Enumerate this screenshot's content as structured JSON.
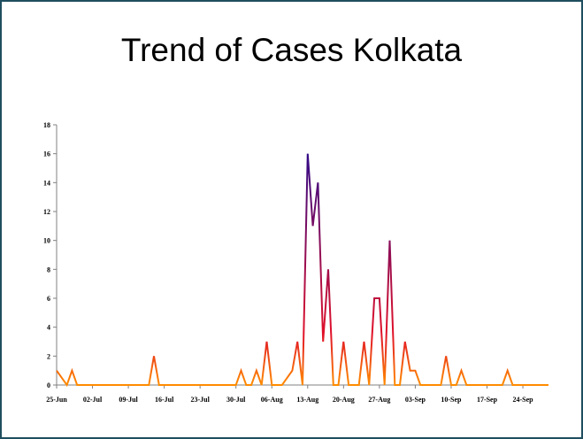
{
  "chart_data": {
    "type": "line",
    "title": "Trend of Cases Kolkata",
    "xlabel": "",
    "ylabel": "",
    "ylim": [
      0,
      18
    ],
    "yticks": [
      0,
      2,
      4,
      6,
      8,
      10,
      12,
      14,
      16,
      18
    ],
    "x_start": "25-Jun",
    "x_end": "29-Sep",
    "xtick_labels": [
      "25-Jun",
      "02-Jul",
      "09-Jul",
      "16-Jul",
      "23-Jul",
      "30-Jul",
      "06-Aug",
      "13-Aug",
      "20-Aug",
      "27-Aug",
      "03-Sep",
      "10-Sep",
      "17-Sep",
      "24-Sep"
    ],
    "grid": false,
    "legend": "none",
    "color_scale": {
      "low": "#ff8c00",
      "mid": "#e0102a",
      "high": "#2a0a8c"
    },
    "series": [
      {
        "name": "",
        "points": [
          {
            "x": "25-Jun",
            "y": 1
          },
          {
            "x": "27-Jun",
            "y": 0
          },
          {
            "x": "28-Jun",
            "y": 1
          },
          {
            "x": "29-Jun",
            "y": 0
          },
          {
            "x": "13-Jul",
            "y": 0
          },
          {
            "x": "14-Jul",
            "y": 2
          },
          {
            "x": "15-Jul",
            "y": 0
          },
          {
            "x": "29-Jul",
            "y": 0
          },
          {
            "x": "30-Jul",
            "y": 0
          },
          {
            "x": "31-Jul",
            "y": 1
          },
          {
            "x": "01-Aug",
            "y": 0
          },
          {
            "x": "02-Aug",
            "y": 0
          },
          {
            "x": "03-Aug",
            "y": 1
          },
          {
            "x": "04-Aug",
            "y": 0
          },
          {
            "x": "05-Aug",
            "y": 3
          },
          {
            "x": "06-Aug",
            "y": 0
          },
          {
            "x": "08-Aug",
            "y": 0
          },
          {
            "x": "10-Aug",
            "y": 1
          },
          {
            "x": "11-Aug",
            "y": 3
          },
          {
            "x": "12-Aug",
            "y": 0
          },
          {
            "x": "13-Aug",
            "y": 16
          },
          {
            "x": "14-Aug",
            "y": 11
          },
          {
            "x": "15-Aug",
            "y": 14
          },
          {
            "x": "16-Aug",
            "y": 3
          },
          {
            "x": "17-Aug",
            "y": 8
          },
          {
            "x": "18-Aug",
            "y": 0
          },
          {
            "x": "19-Aug",
            "y": 0
          },
          {
            "x": "20-Aug",
            "y": 3
          },
          {
            "x": "21-Aug",
            "y": 0
          },
          {
            "x": "23-Aug",
            "y": 0
          },
          {
            "x": "24-Aug",
            "y": 3
          },
          {
            "x": "25-Aug",
            "y": 0
          },
          {
            "x": "26-Aug",
            "y": 6
          },
          {
            "x": "27-Aug",
            "y": 6
          },
          {
            "x": "28-Aug",
            "y": 0
          },
          {
            "x": "29-Aug",
            "y": 10
          },
          {
            "x": "30-Aug",
            "y": 0
          },
          {
            "x": "31-Aug",
            "y": 0
          },
          {
            "x": "01-Sep",
            "y": 3
          },
          {
            "x": "02-Sep",
            "y": 1
          },
          {
            "x": "03-Sep",
            "y": 1
          },
          {
            "x": "04-Sep",
            "y": 0
          },
          {
            "x": "08-Sep",
            "y": 0
          },
          {
            "x": "09-Sep",
            "y": 2
          },
          {
            "x": "10-Sep",
            "y": 0
          },
          {
            "x": "11-Sep",
            "y": 0
          },
          {
            "x": "12-Sep",
            "y": 1
          },
          {
            "x": "13-Sep",
            "y": 0
          },
          {
            "x": "20-Sep",
            "y": 0
          },
          {
            "x": "21-Sep",
            "y": 1
          },
          {
            "x": "22-Sep",
            "y": 0
          },
          {
            "x": "29-Sep",
            "y": 0
          }
        ]
      }
    ]
  }
}
